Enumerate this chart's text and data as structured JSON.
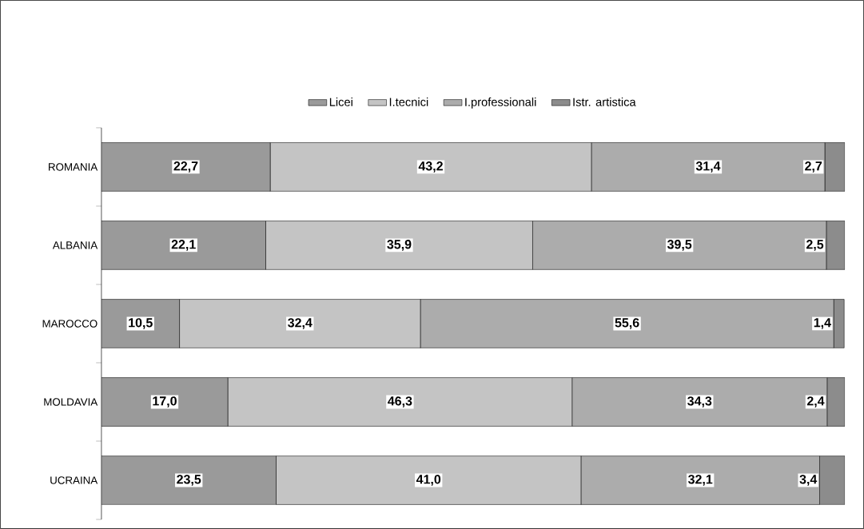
{
  "chart_data": {
    "type": "bar",
    "orientation": "horizontal",
    "stacked": true,
    "legend": "top",
    "categories": [
      "ROMANIA",
      "ALBANIA",
      "MAROCCO",
      "MOLDAVIA",
      "UCRAINA"
    ],
    "xlim": [
      0,
      100
    ],
    "series": [
      {
        "name": "Licei",
        "color": "#9a9a9a",
        "values": [
          22.7,
          22.1,
          10.5,
          17.0,
          23.5
        ],
        "value_labels": [
          "22,7",
          "22,1",
          "10,5",
          "17,0",
          "23,5"
        ]
      },
      {
        "name": "I.tecnici",
        "color": "#c4c4c4",
        "values": [
          43.2,
          35.9,
          32.4,
          46.3,
          41.0
        ],
        "value_labels": [
          "43,2",
          "35,9",
          "32,4",
          "46,3",
          "41,0"
        ]
      },
      {
        "name": "I.professionali",
        "color": "#acacac",
        "values": [
          31.4,
          39.5,
          55.6,
          34.3,
          32.1
        ],
        "value_labels": [
          "31,4",
          "39,5",
          "55,6",
          "34,3",
          "32,1"
        ]
      },
      {
        "name": "Istr. artistica",
        "color": "#8c8c8c",
        "values": [
          2.7,
          2.5,
          1.4,
          2.4,
          3.4
        ],
        "value_labels": [
          "2,7",
          "2,5",
          "1,4",
          "2,4",
          "3,4"
        ]
      }
    ]
  }
}
